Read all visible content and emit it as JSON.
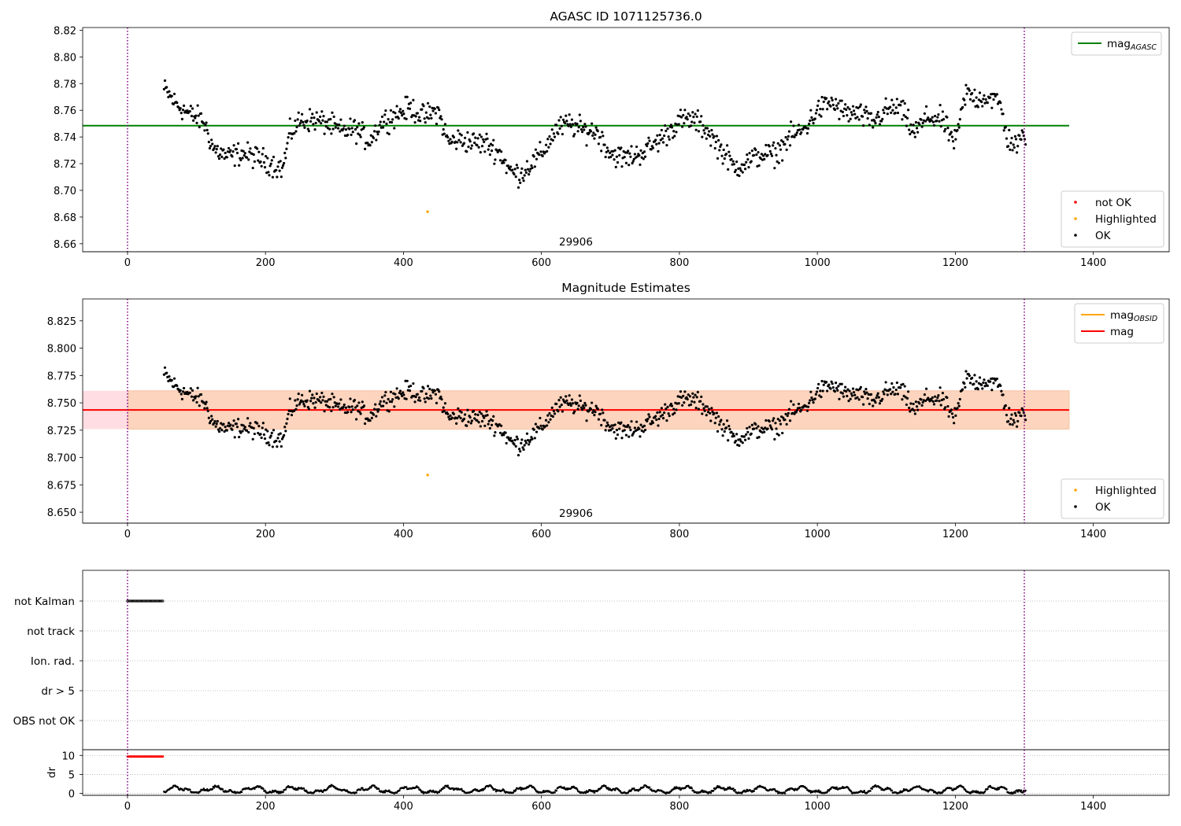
{
  "colors": {
    "agasc_line": "#008000",
    "obsid_line": "#ffa500",
    "mag_line": "#ff0000",
    "ok_point": "#000000",
    "not_ok_point": "#ff0000",
    "highlighted_point": "#ffa500",
    "band_outer": "#ffdde2",
    "band_inner": "#fdd4be",
    "vline": "#800080",
    "grid": "#b0b0b0"
  },
  "chart_data": [
    {
      "id": "agasc",
      "type": "scatter",
      "title": "AGASC ID 1071125736.0",
      "xlim": [
        -65,
        1510
      ],
      "ylim": [
        8.654,
        8.822
      ],
      "xticks": [
        0,
        200,
        400,
        600,
        800,
        1000,
        1200,
        1400
      ],
      "yticks": [
        8.66,
        8.68,
        8.7,
        8.72,
        8.74,
        8.76,
        8.78,
        8.8,
        8.82
      ],
      "ytick_decimals": 2,
      "obsid_label": {
        "text": "29906",
        "x": 650
      },
      "vlines": [
        0,
        1300
      ],
      "legend_upper": [
        {
          "label": "mag",
          "subscript": "AGASC",
          "kind": "line",
          "color": "#008000"
        }
      ],
      "legend_lower": [
        {
          "label": "not OK",
          "kind": "point",
          "color": "#ff0000"
        },
        {
          "label": "Highlighted",
          "kind": "point",
          "color": "#ffa500"
        },
        {
          "label": "OK",
          "kind": "point",
          "color": "#000000"
        }
      ],
      "hlines": [
        {
          "name": "mag_AGASC",
          "y": 8.7485,
          "x_range": [
            -65,
            1365
          ],
          "color": "#008000"
        }
      ],
      "band": null,
      "highlighted_points": [
        {
          "x": 435,
          "y": 8.684
        }
      ],
      "series_note": "OK points drawn from mag_trend"
    },
    {
      "id": "estimates",
      "type": "scatter",
      "title": "Magnitude Estimates",
      "xlim": [
        -65,
        1510
      ],
      "ylim": [
        8.64,
        8.845
      ],
      "xticks": [
        0,
        200,
        400,
        600,
        800,
        1000,
        1200,
        1400
      ],
      "yticks": [
        8.65,
        8.675,
        8.7,
        8.725,
        8.75,
        8.775,
        8.8,
        8.825
      ],
      "ytick_decimals": 3,
      "obsid_label": {
        "text": "29906",
        "x": 650
      },
      "vlines": [
        0,
        1300
      ],
      "legend_upper": [
        {
          "label": "mag",
          "subscript": "OBSID",
          "kind": "line",
          "color": "#ffa500"
        },
        {
          "label": "mag",
          "subscript": "",
          "kind": "line",
          "color": "#ff0000"
        }
      ],
      "legend_lower": [
        {
          "label": "Highlighted",
          "kind": "point",
          "color": "#ffa500"
        },
        {
          "label": "OK",
          "kind": "point",
          "color": "#000000"
        }
      ],
      "hlines": [
        {
          "name": "mag",
          "y": 8.7435,
          "x_range": [
            -65,
            1365
          ],
          "color": "#ff0000"
        }
      ],
      "band": {
        "outer": [
          8.726,
          8.761
        ],
        "inner": [
          8.726,
          8.761
        ],
        "x_range": [
          1,
          1365
        ],
        "outer_x_range": [
          -65,
          1365
        ]
      },
      "highlighted_points": [
        {
          "x": 435,
          "y": 8.684
        }
      ]
    },
    {
      "id": "flags",
      "type": "scatter",
      "xlim": [
        -65,
        1510
      ],
      "categories": [
        "not Kalman",
        "not track",
        "Ion. rad.",
        "dr > 5",
        "OBS not OK"
      ],
      "flag_points": [
        {
          "category": "not Kalman",
          "x_range": [
            0,
            52
          ],
          "color": "#000000"
        }
      ],
      "vlines": [
        0,
        1300
      ]
    },
    {
      "id": "dr",
      "type": "line",
      "ylabel": "dr",
      "xlim": [
        -65,
        1510
      ],
      "ylim": [
        -0.5,
        11.5
      ],
      "yticks": [
        0,
        5,
        10
      ],
      "xticks": [
        0,
        200,
        400,
        600,
        800,
        1000,
        1200,
        1400
      ],
      "red_points": {
        "x_range": [
          0,
          52
        ],
        "y": 9.7
      },
      "vlines": [
        0,
        1300
      ]
    }
  ],
  "mag_trend": [
    [
      55,
      8.775
    ],
    [
      70,
      8.765
    ],
    [
      90,
      8.757
    ],
    [
      110,
      8.752
    ],
    [
      125,
      8.731
    ],
    [
      145,
      8.725
    ],
    [
      165,
      8.728
    ],
    [
      185,
      8.725
    ],
    [
      205,
      8.721
    ],
    [
      225,
      8.716
    ],
    [
      235,
      8.742
    ],
    [
      250,
      8.752
    ],
    [
      270,
      8.753
    ],
    [
      290,
      8.75
    ],
    [
      310,
      8.744
    ],
    [
      330,
      8.746
    ],
    [
      350,
      8.737
    ],
    [
      370,
      8.752
    ],
    [
      390,
      8.757
    ],
    [
      410,
      8.762
    ],
    [
      430,
      8.755
    ],
    [
      450,
      8.76
    ],
    [
      465,
      8.736
    ],
    [
      480,
      8.738
    ],
    [
      500,
      8.736
    ],
    [
      520,
      8.735
    ],
    [
      540,
      8.728
    ],
    [
      555,
      8.714
    ],
    [
      570,
      8.712
    ],
    [
      585,
      8.72
    ],
    [
      600,
      8.727
    ],
    [
      620,
      8.745
    ],
    [
      640,
      8.75
    ],
    [
      660,
      8.745
    ],
    [
      680,
      8.744
    ],
    [
      700,
      8.728
    ],
    [
      720,
      8.724
    ],
    [
      740,
      8.727
    ],
    [
      760,
      8.733
    ],
    [
      780,
      8.742
    ],
    [
      800,
      8.752
    ],
    [
      820,
      8.753
    ],
    [
      840,
      8.745
    ],
    [
      860,
      8.731
    ],
    [
      880,
      8.717
    ],
    [
      900,
      8.722
    ],
    [
      920,
      8.727
    ],
    [
      940,
      8.727
    ],
    [
      960,
      8.74
    ],
    [
      980,
      8.745
    ],
    [
      1000,
      8.76
    ],
    [
      1020,
      8.766
    ],
    [
      1040,
      8.758
    ],
    [
      1060,
      8.757
    ],
    [
      1080,
      8.751
    ],
    [
      1100,
      8.76
    ],
    [
      1120,
      8.762
    ],
    [
      1140,
      8.743
    ],
    [
      1160,
      8.755
    ],
    [
      1180,
      8.753
    ],
    [
      1200,
      8.735
    ],
    [
      1215,
      8.773
    ],
    [
      1230,
      8.769
    ],
    [
      1250,
      8.77
    ],
    [
      1265,
      8.765
    ],
    [
      1275,
      8.739
    ],
    [
      1290,
      8.733
    ],
    [
      1300,
      8.742
    ]
  ]
}
